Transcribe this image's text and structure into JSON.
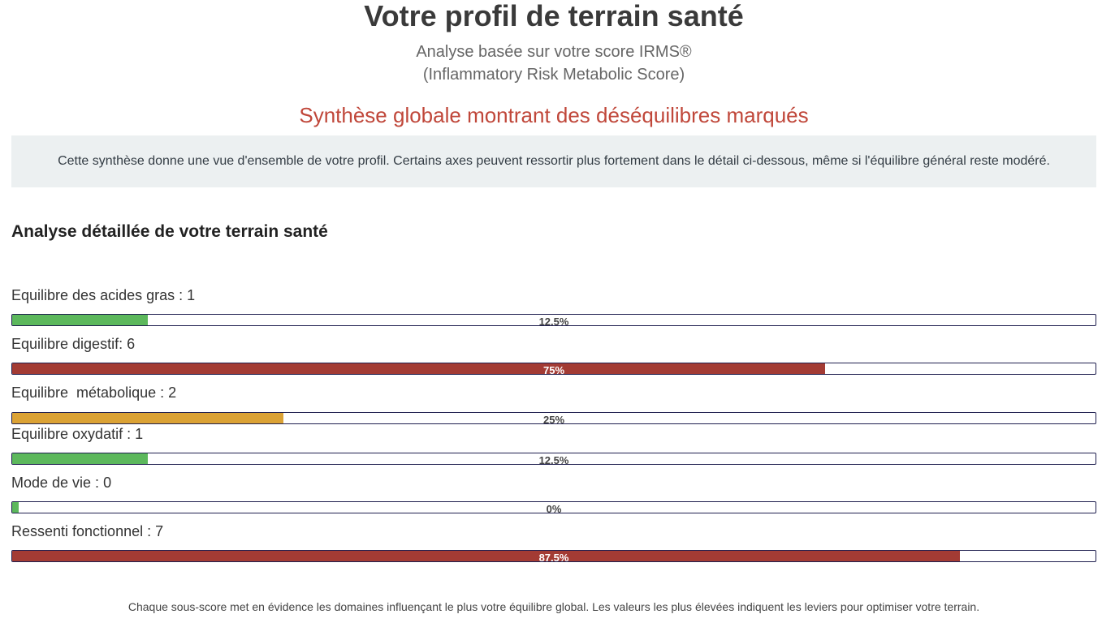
{
  "header": {
    "title": "Votre profil de terrain santé",
    "subtitle_line1": "Analyse basée sur votre score IRMS®",
    "subtitle_line2": "(Inflammatory Risk Metabolic Score)"
  },
  "synthesis": {
    "headline": "Synthèse globale montrant des déséquilibres marqués",
    "description": "Cette synthèse donne une vue d'ensemble de votre profil. Certains axes peuvent ressortir plus fortement dans le détail ci-dessous, même si l'équilibre général reste modéré."
  },
  "details": {
    "title": "Analyse détaillée de votre terrain santé",
    "scores": [
      {
        "label": "Equilibre des acides gras : 1",
        "percent_text": "12.5%",
        "percent": 12.5,
        "color": "#5cb85c"
      },
      {
        "label": "Equilibre digestif: 6",
        "percent_text": "75%",
        "percent": 75,
        "color": "#a33b34"
      },
      {
        "label": "Equilibre  métabolique : 2",
        "percent_text": "25%",
        "percent": 25,
        "color": "#dba235"
      },
      {
        "label": "Equilibre oxydatif : 1",
        "percent_text": "12.5%",
        "percent": 12.5,
        "color": "#5cb85c"
      },
      {
        "label": "Mode de vie : 0",
        "percent_text": "0%",
        "percent": 0,
        "color": "#5cb85c"
      },
      {
        "label": "Ressenti fonctionnel : 7",
        "percent_text": "87.5%",
        "percent": 87.5,
        "color": "#a33b34"
      }
    ]
  },
  "footer": {
    "note": "Chaque sous-score met en évidence les domaines influençant le plus votre équilibre global. Les valeurs les plus élevées indiquent les leviers pour optimiser votre terrain."
  }
}
